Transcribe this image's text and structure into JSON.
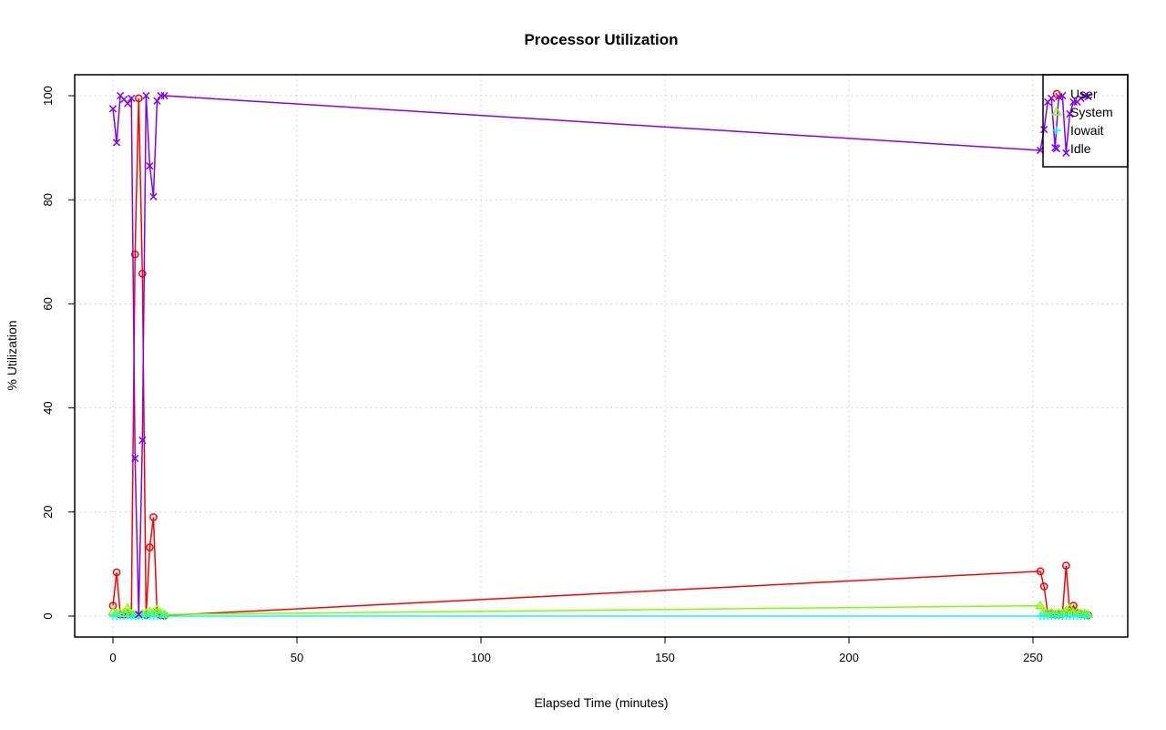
{
  "chart_data": {
    "type": "line",
    "title": "Processor Utilization",
    "xlabel": "Elapsed Time (minutes)",
    "ylabel": "% Utilization",
    "xlim": [
      -10,
      275
    ],
    "ylim": [
      -4,
      104
    ],
    "xticks": [
      0,
      50,
      100,
      150,
      200,
      250
    ],
    "yticks": [
      0,
      20,
      40,
      60,
      80,
      100
    ],
    "grid": true,
    "legend_position": "top-right",
    "x": [
      0,
      1,
      2,
      3,
      4,
      5,
      6,
      7,
      8,
      9,
      10,
      11,
      12,
      13,
      14,
      252,
      253,
      254,
      255,
      256,
      257,
      258,
      259,
      260,
      261,
      262,
      263,
      264,
      265
    ],
    "series": [
      {
        "name": "User",
        "color": "#ff0000",
        "marker": "circle",
        "values": [
          2,
          8.4,
          0.3,
          0.3,
          0.5,
          0.3,
          69.5,
          99.5,
          65.8,
          0.2,
          13.2,
          19,
          0.5,
          0.2,
          0.1,
          8.6,
          5.7,
          0.5,
          0.4,
          0.3,
          0.3,
          0.4,
          9.7,
          0.5,
          2,
          0.6,
          0.4,
          0.3,
          0.2
        ]
      },
      {
        "name": "System",
        "color": "#80ff00",
        "marker": "triangle",
        "values": [
          0.8,
          0.5,
          0.5,
          0.6,
          1.5,
          0.4,
          0.2,
          0.3,
          0.4,
          0.5,
          0.8,
          0.6,
          1.3,
          0.5,
          0.3,
          2,
          0.8,
          0.5,
          0.6,
          0.4,
          0.5,
          0.4,
          1,
          1.5,
          0.6,
          0.8,
          0.5,
          0.4,
          0.3
        ]
      },
      {
        "name": "Iowait",
        "color": "#00ffff",
        "marker": "plus",
        "values": [
          0,
          0,
          0,
          0,
          0,
          0,
          0,
          0,
          0,
          0,
          0,
          0,
          0,
          0,
          0,
          0,
          0,
          0,
          0,
          0,
          0,
          0,
          0,
          0,
          0,
          0,
          0,
          0,
          0
        ]
      },
      {
        "name": "Idle",
        "color": "#8000ff",
        "marker": "cross",
        "values": [
          97.5,
          91,
          100,
          99.3,
          98.5,
          99.5,
          30.3,
          0.3,
          33.8,
          100,
          86.5,
          80.6,
          99,
          100,
          100,
          89.5,
          93.5,
          98.8,
          99.5,
          90,
          99.8,
          100,
          89,
          96.5,
          98.8,
          98.8,
          99.5,
          100,
          99.8
        ]
      }
    ]
  }
}
